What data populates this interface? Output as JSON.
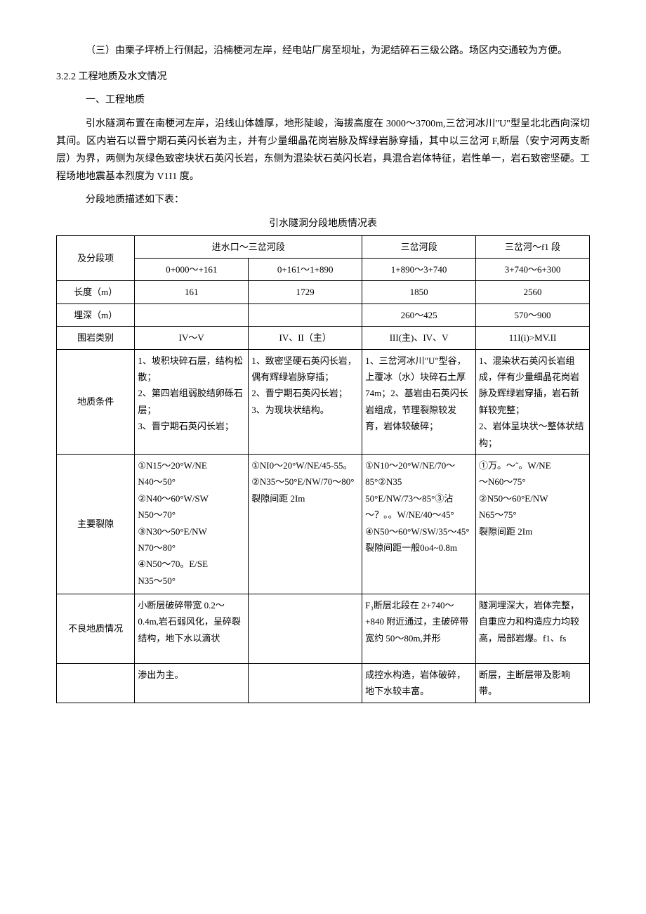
{
  "paragraphs": {
    "p1": "（三）由栗子坪桥上行侧起，沿楠梗河左岸，经电站厂房至坝址，为泥结碎石三级公路。场区内交通较为方便。",
    "section_num": "3.2.2 工程地质及水文情况",
    "sub1": "一、工程地质",
    "p2": "引水隧洞布置在南梗河左岸，沿线山体雄厚，地形陡峻，海拔高度在 3000～3700m,三岔河冰川\"U\"型呈北北西向深切其间。区内岩石以晋宁期石英闪长岩为主，并有少量细晶花岗岩脉及辉绿岩脉穿插，其中以三岔河 F,断层（安宁河两支断层）为界，两侧为灰绿色致密块状石英闪长岩，东侧为混染状石英闪长岩，具混合岩体特征，岩性单一，岩石致密坚硬。工程场地地震基本烈度为 V1I1 度。",
    "p3": "分段地质描述如下表：",
    "table_title": "引水隧洞分段地质情况表"
  },
  "table": {
    "header": {
      "col0": "及分段项",
      "col1": "进水口～三岔河段",
      "col2": "三岔河段",
      "col3": "三岔河～f1 段"
    },
    "ranges": {
      "a": "0+000～+161",
      "b": "0+161～1+890",
      "c": "1+890～3+740",
      "d": "3+740～6+300"
    },
    "rows": {
      "length": {
        "label": "长度（m）",
        "a": "161",
        "b": "1729",
        "c": "1850",
        "d": "2560"
      },
      "depth": {
        "label": "埋深（m）",
        "a": "",
        "b": "",
        "c": "260～425",
        "d": "570～900"
      },
      "rock_class": {
        "label": "围岩类别",
        "a": "IV～V",
        "b": "IV、II（主）",
        "c": "III(主)、IV、V",
        "d": "11I(i)>MV.II"
      },
      "geology": {
        "label": "地质条件",
        "a": "1、坡积块碎石层，结构松散；\n2、第四岩组弱胶结卵砾石层；\n3、晋宁期石英闪长岩；",
        "b": "1、致密坚硬石英闪长岩，偶有辉绿岩脉穿插；\n2、晋宁期石英闪长岩；\n3、为现块状结构。",
        "c": "1、三岔河冰川\"U\"型谷，上覆冰（水）块碎石土厚 74m；2、基岩由石英闪长岩组成，节理裂隙较发育，岩体较破碎；",
        "d": "1、混染状石英闪长岩组成，伴有少量细晶花岗岩脉及辉绿岩穿插，岩石新鲜较完整；\n2、岩体呈块状～整体状结构；"
      },
      "cracks": {
        "label": "主要裂隙",
        "a": "①N15～20°W/NE\nN40～50°\n②N40～60°W/SW\nN50～70°\n③N30～50°E/NW\nN70～80°\n④N50～70。E/SE\nN35～50°",
        "b": "①NI0～20°W/NE/45-55。\n②N35～50°E/NW/70～80°裂隙间距 2Im",
        "c": "①N10～20°W/NE/70～85°②N35\n50°E/NW/73～85°③沾～？。。W/NE/40～45°\n④N50～60°W/SW/35～45°裂隙间距一般0o4~0.8m",
        "d": "①万。～˜。W/NE\n～N60～75°\n②N50～60°E/NW\nN65～75°\n裂隙间距 2Im"
      },
      "bad_geo": {
        "label": "不良地质情况",
        "a": "小断层破碎带宽 0.2～0.4m,岩石弱风化，呈碎裂结构，地下水以滴状",
        "b": "",
        "c": "F₃断层北段在 2+740～+840 附近通过，主破碎带宽约 50～80m,并形",
        "d": "隧洞埋深大，岩体完整，自重应力和构造应力均较高，局部岩爆。f1、fs"
      },
      "bad_geo2": {
        "a": "渗出为主。",
        "b": "",
        "c": "成控水构造，岩体破碎，地下水较丰富。",
        "d": "断层，主断层带及影响带。"
      }
    }
  }
}
